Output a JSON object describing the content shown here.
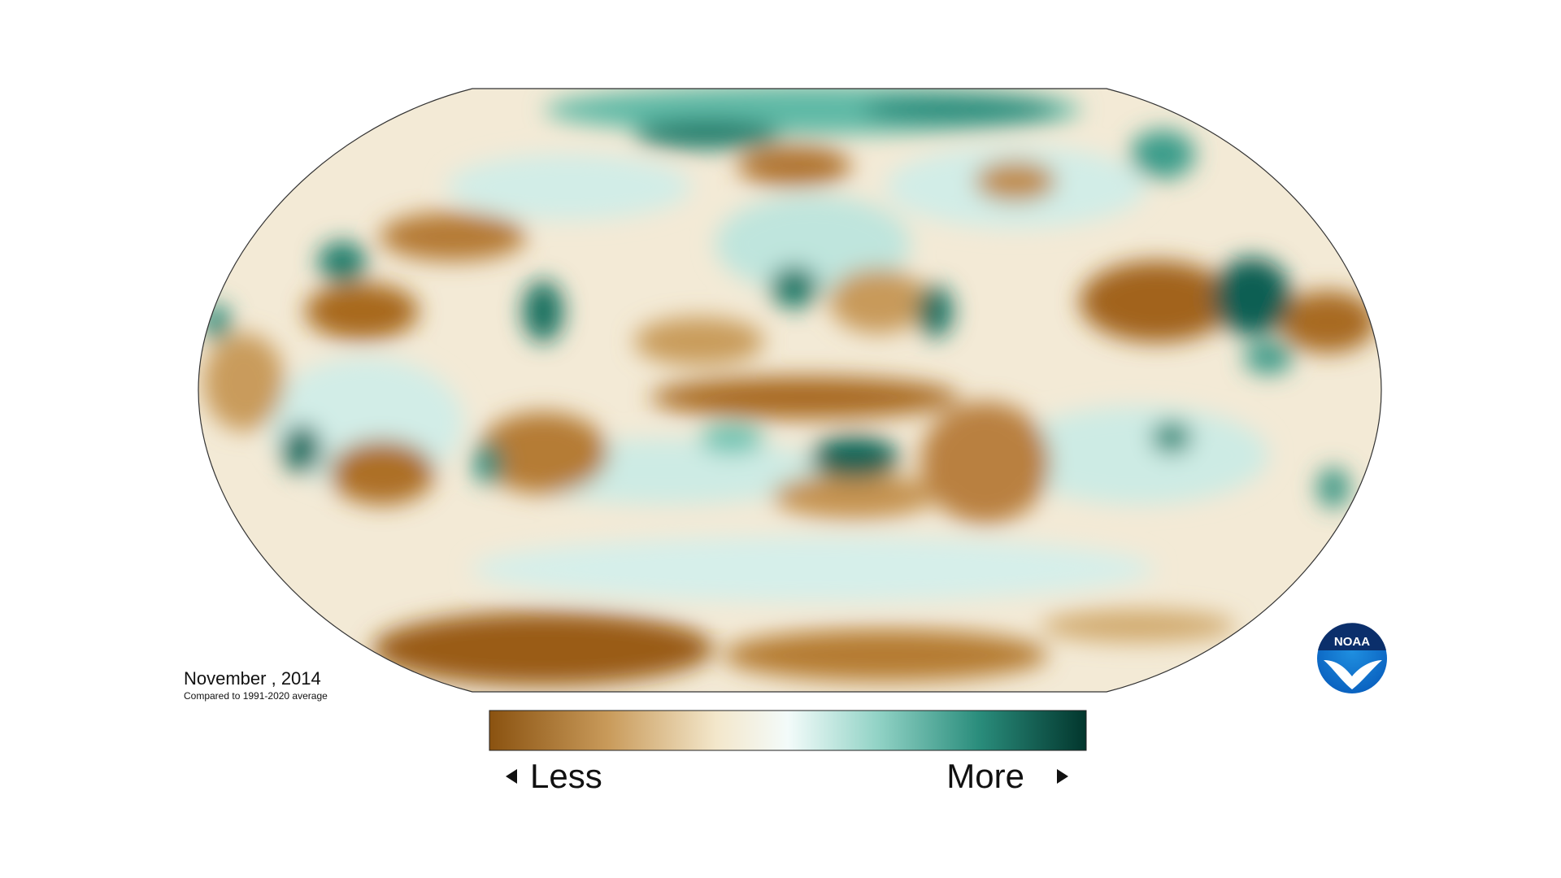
{
  "map": {
    "date_label": "November , 2014",
    "subtitle": "Compared to 1991-2020 average"
  },
  "legend": {
    "less": "Less",
    "more": "More"
  },
  "logo": {
    "text": "NOAA"
  }
}
